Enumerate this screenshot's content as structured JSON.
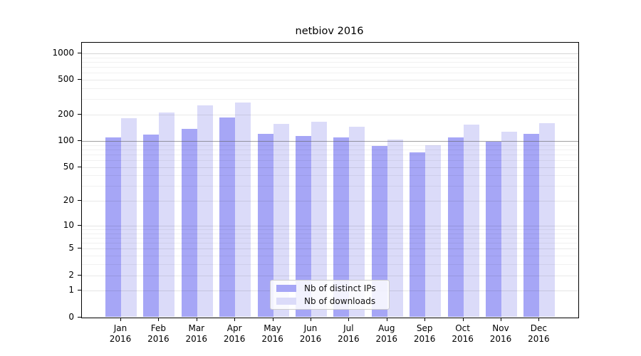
{
  "chart_data": {
    "type": "bar",
    "title": "netbiov 2016",
    "categories": [
      "Jan",
      "Feb",
      "Mar",
      "Apr",
      "May",
      "Jun",
      "Jul",
      "Aug",
      "Sep",
      "Oct",
      "Nov",
      "Dec"
    ],
    "category_year": "2016",
    "series": [
      {
        "name": "Nb of distinct IPs",
        "color": "#a6a6f6",
        "values": [
          110,
          118,
          138,
          187,
          121,
          114,
          109,
          87,
          74,
          110,
          98,
          121
        ]
      },
      {
        "name": "Nb of downloads",
        "color": "#dbdbf9",
        "values": [
          183,
          211,
          257,
          277,
          157,
          166,
          145,
          103,
          90,
          154,
          128,
          160
        ]
      }
    ],
    "yscale": "log10(value+1)",
    "yticks": [
      0,
      1,
      2,
      5,
      10,
      20,
      50,
      100,
      200,
      500,
      1000
    ],
    "ylim": [
      0,
      1320
    ],
    "grid": true,
    "emphasized_gridline": 100,
    "legend_position": "lower center",
    "background_color": "#ffffff",
    "spine_color": "#000000"
  }
}
